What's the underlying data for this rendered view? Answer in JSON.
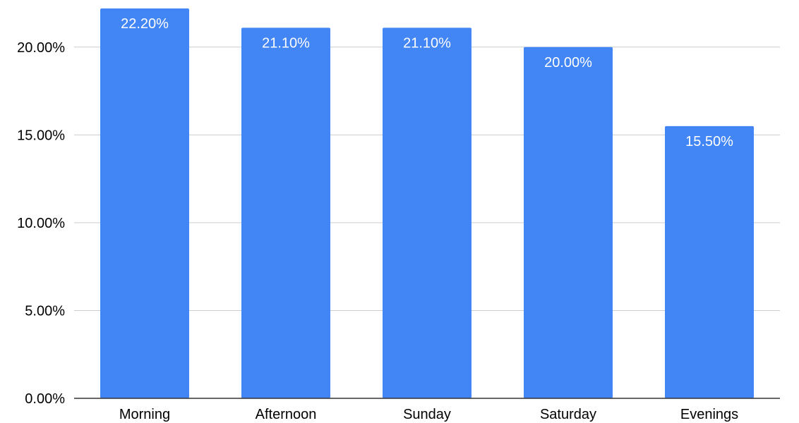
{
  "chart_data": {
    "type": "bar",
    "title": "",
    "xlabel": "",
    "ylabel": "",
    "categories": [
      "Morning",
      "Afternoon",
      "Sunday",
      "Saturday",
      "Evenings"
    ],
    "values": [
      22.2,
      21.1,
      21.1,
      20.0,
      15.5
    ],
    "data_labels": [
      "22.20%",
      "21.10%",
      "21.10%",
      "20.00%",
      "15.50%"
    ],
    "ylim": [
      0,
      22.2
    ],
    "y_ticks": [
      0,
      5,
      10,
      15,
      20
    ],
    "y_tick_labels": [
      "0.00%",
      "5.00%",
      "10.00%",
      "15.00%",
      "20.00%"
    ],
    "grid": true,
    "legend": "none",
    "bar_color": "#4285F4",
    "gridline_color": "#cccccc",
    "axis_color": "#333333"
  }
}
